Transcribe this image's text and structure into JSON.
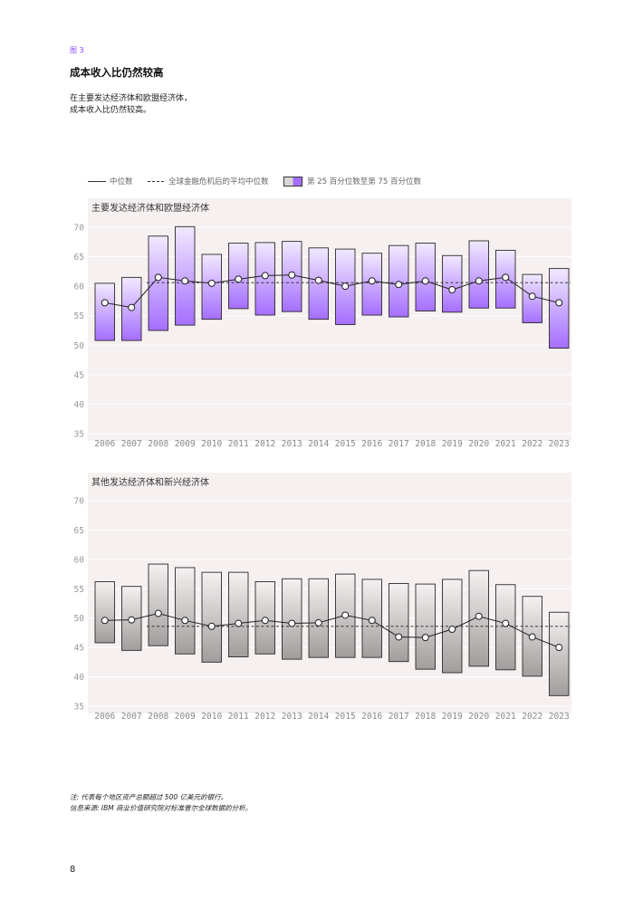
{
  "figure_label": "图 3",
  "title": "成本收入比仍然较高",
  "subtitle_lines": [
    "在主要发达经济体和欧盟经济体，",
    "成本收入比仍然较高。"
  ],
  "legend": {
    "median": "中位数",
    "post_crisis": "全球金融危机后的平均中位数",
    "range": "第 25 百分位数至第 75 百分位数"
  },
  "colors": {
    "panel_bg": "#f6f0f0",
    "purple_top": "#f1e9ff",
    "purple_bottom": "#a56eff",
    "gray_top": "#f4f1f1",
    "gray_bottom": "#a29d9d"
  },
  "notes": {
    "note": "注: 代表每个地区资产总额超过 500 亿美元的银行。",
    "source": "信息来源: IBM 商业价值研究院对标准普尔全球数据的分析。"
  },
  "page_number": "8",
  "chart_data": [
    {
      "type": "box",
      "title": "主要发达经济体和欧盟经济体",
      "ylim": [
        35,
        70
      ],
      "yticks": [
        35,
        40,
        45,
        50,
        55,
        60,
        65,
        70
      ],
      "categories": [
        "2006",
        "2007",
        "2008",
        "2009",
        "2010",
        "2011",
        "2012",
        "2013",
        "2014",
        "2015",
        "2016",
        "2017",
        "2018",
        "2019",
        "2020",
        "2021",
        "2022",
        "2023"
      ],
      "p25": [
        50.8,
        50.8,
        52.5,
        53.4,
        54.4,
        56.2,
        55.1,
        55.7,
        54.4,
        53.5,
        55.1,
        54.8,
        55.8,
        55.6,
        56.3,
        56.3,
        53.8,
        49.5
      ],
      "p75": [
        60.5,
        61.5,
        68.5,
        70.1,
        65.4,
        67.3,
        67.4,
        67.6,
        66.5,
        66.3,
        65.6,
        66.9,
        67.3,
        65.2,
        67.7,
        66.1,
        62.0,
        63.0
      ],
      "median": [
        57.2,
        56.4,
        61.5,
        60.9,
        60.5,
        61.2,
        61.8,
        61.9,
        61.0,
        60.0,
        60.9,
        60.3,
        60.9,
        59.4,
        60.9,
        61.5,
        58.3,
        57.2
      ],
      "post_crisis_avg_median": 60.6,
      "post_crisis_start": "2008"
    },
    {
      "type": "box",
      "title": "其他发达经济体和新兴经济体",
      "ylim": [
        35,
        70
      ],
      "yticks": [
        35,
        40,
        45,
        50,
        55,
        60,
        65,
        70
      ],
      "categories": [
        "2006",
        "2007",
        "2008",
        "2009",
        "2010",
        "2011",
        "2012",
        "2013",
        "2014",
        "2015",
        "2016",
        "2017",
        "2018",
        "2019",
        "2020",
        "2021",
        "2022",
        "2023"
      ],
      "p25": [
        45.8,
        44.5,
        45.3,
        43.9,
        42.5,
        43.4,
        43.9,
        43.0,
        43.3,
        43.3,
        43.3,
        42.6,
        41.3,
        40.7,
        41.8,
        41.2,
        40.1,
        36.8
      ],
      "p75": [
        56.2,
        55.4,
        59.2,
        58.6,
        57.8,
        57.8,
        56.2,
        56.7,
        56.7,
        57.5,
        56.6,
        55.9,
        55.8,
        56.6,
        58.1,
        55.7,
        53.7,
        51.0
      ],
      "median": [
        49.6,
        49.7,
        50.8,
        49.6,
        48.6,
        49.1,
        49.6,
        49.1,
        49.2,
        50.5,
        49.6,
        46.8,
        46.7,
        48.1,
        50.3,
        49.1,
        46.8,
        45.0
      ],
      "post_crisis_avg_median": 48.6,
      "post_crisis_start": "2008"
    }
  ]
}
